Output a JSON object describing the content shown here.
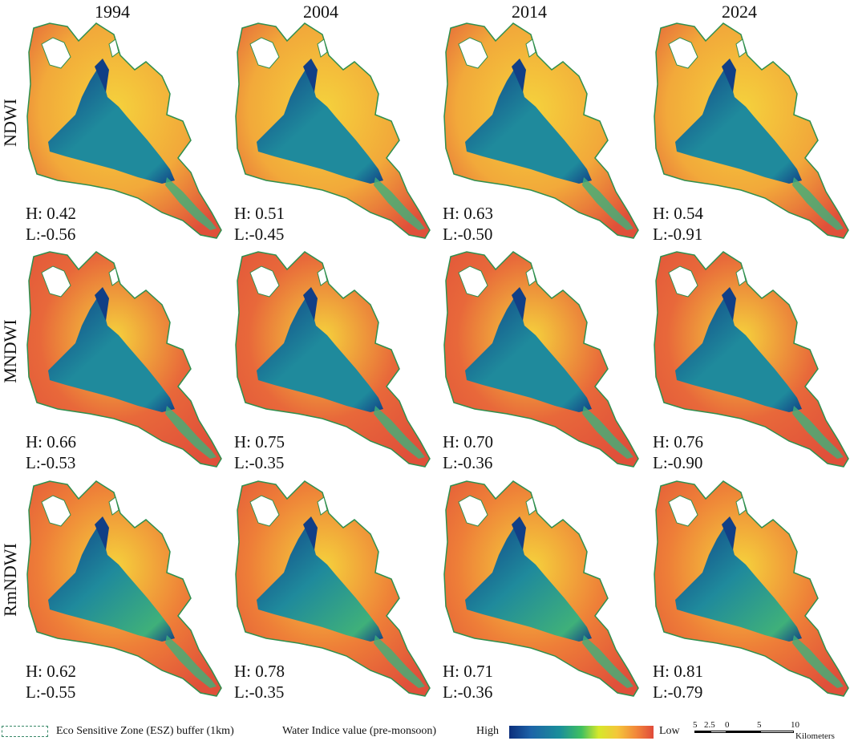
{
  "years": [
    "1994",
    "2004",
    "2014",
    "2024"
  ],
  "rows": [
    {
      "index": "NDWI",
      "values": [
        {
          "H": "H: 0.42",
          "L": "L:-0.56"
        },
        {
          "H": "H: 0.51",
          "L": "L:-0.45"
        },
        {
          "H": "H: 0.63",
          "L": "L:-0.50"
        },
        {
          "H": "H: 0.54",
          "L": "L:-0.91"
        }
      ]
    },
    {
      "index": "MNDWI",
      "values": [
        {
          "H": "H: 0.66",
          "L": "L:-0.53"
        },
        {
          "H": "H: 0.75",
          "L": "L:-0.35"
        },
        {
          "H": "H: 0.70",
          "L": "L:-0.36"
        },
        {
          "H": "H: 0.76",
          "L": "L:-0.90"
        }
      ]
    },
    {
      "index": "RmNDWI",
      "values": [
        {
          "H": "H: 0.62",
          "L": "L:-0.55"
        },
        {
          "H": "H: 0.78",
          "L": "L:-0.35"
        },
        {
          "H": "H: 0.71",
          "L": "L:-0.36"
        },
        {
          "H": "H: 0.81",
          "L": "L:-0.79"
        }
      ]
    }
  ],
  "legend": {
    "esz_label": "Eco Sensitive Zone (ESZ) buffer (1km)",
    "ramp_title": "Water Indice value (pre-monsoon)",
    "high_label": "High",
    "low_label": "Low",
    "ramp_colors": [
      "#0b2e7c",
      "#1a8f9a",
      "#40c060",
      "#d6e82a",
      "#f2873a",
      "#e04a3a"
    ],
    "scale_ticks": [
      "5",
      "2.5",
      "0",
      "5",
      "10"
    ],
    "scale_unit": "Kilometers"
  },
  "colors": {
    "land_ndwi": "#f2a93a",
    "land_mndwi": "#e8683a",
    "land_rmndwi": "#ee7e38",
    "water_deep": "#113f86",
    "water_mid": "#1f8a9c",
    "water_green": "#3fb07a",
    "boundary": "#2f8f4e"
  }
}
